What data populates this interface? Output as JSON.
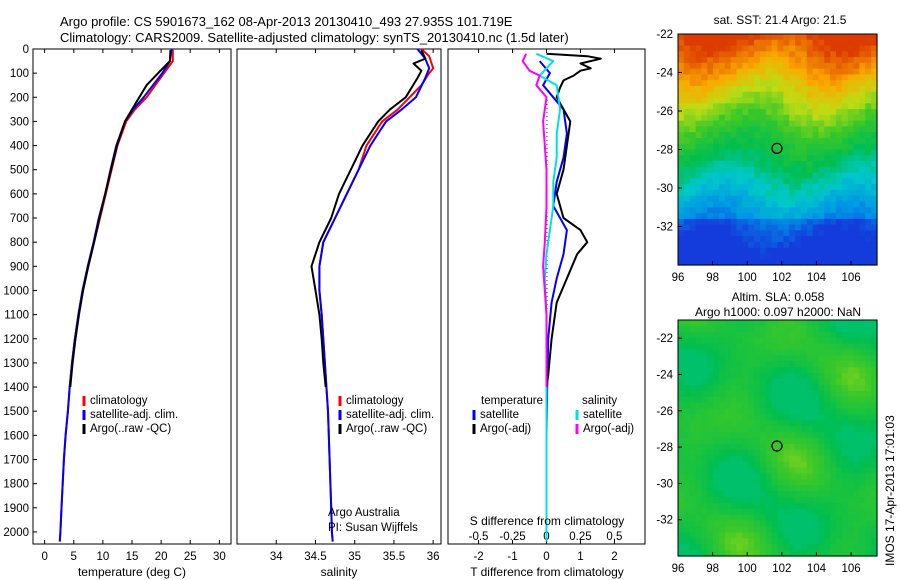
{
  "title_line1": "Argo profile: CS 5901673_162 08-Apr-2013 20130410_493 27.935S 101.719E",
  "title_line2": "Climatology: CARS2009. Satellite-adjusted climatology: synTS_20130410.nc (1.5d later)",
  "side_stamp": "IMOS 17-Apr-2013 17:01:03",
  "chart_data": [
    {
      "type": "line",
      "xlabel": "temperature (deg C)",
      "xlim": [
        -2,
        32
      ],
      "ylim": [
        2050,
        0
      ],
      "xticks": [
        0,
        5,
        10,
        15,
        20,
        25,
        30
      ],
      "yticks": [
        0,
        100,
        200,
        300,
        400,
        500,
        600,
        700,
        800,
        900,
        1000,
        1100,
        1200,
        1300,
        1400,
        1500,
        1600,
        1700,
        1800,
        1900,
        2000
      ],
      "legend": [
        "climatology",
        "satellite-adj. clim.",
        "Argo(..raw -QC)"
      ],
      "series": [
        {
          "name": "climatology",
          "color": "#ff0000",
          "points": [
            [
              22.0,
              0
            ],
            [
              22.0,
              50
            ],
            [
              20.5,
              100
            ],
            [
              17.5,
              200
            ],
            [
              15.5,
              250
            ],
            [
              14.0,
              300
            ],
            [
              12.5,
              400
            ],
            [
              11.5,
              500
            ],
            [
              10.5,
              600
            ],
            [
              9.5,
              700
            ],
            [
              8.5,
              800
            ],
            [
              7.5,
              900
            ],
            [
              6.5,
              1000
            ],
            [
              5.8,
              1100
            ],
            [
              5.2,
              1200
            ],
            [
              4.7,
              1300
            ],
            [
              4.3,
              1400
            ],
            [
              4.0,
              1500
            ],
            [
              3.6,
              1600
            ],
            [
              3.3,
              1700
            ],
            [
              3.1,
              1800
            ],
            [
              2.9,
              1900
            ],
            [
              2.7,
              2000
            ],
            [
              2.6,
              2040
            ]
          ]
        },
        {
          "name": "satellite-adj. clim.",
          "color": "#0000ff",
          "points": [
            [
              21.8,
              0
            ],
            [
              21.5,
              50
            ],
            [
              20.2,
              100
            ],
            [
              17.0,
              200
            ],
            [
              15.2,
              250
            ],
            [
              13.8,
              300
            ],
            [
              12.3,
              400
            ],
            [
              11.3,
              500
            ],
            [
              10.4,
              600
            ],
            [
              9.3,
              700
            ],
            [
              8.4,
              800
            ],
            [
              7.4,
              900
            ],
            [
              6.5,
              1000
            ],
            [
              5.8,
              1100
            ],
            [
              5.2,
              1200
            ],
            [
              4.7,
              1300
            ],
            [
              4.3,
              1400
            ],
            [
              4.0,
              1500
            ],
            [
              3.6,
              1600
            ],
            [
              3.3,
              1700
            ],
            [
              3.1,
              1800
            ],
            [
              2.9,
              1900
            ],
            [
              2.7,
              2000
            ],
            [
              2.6,
              2040
            ]
          ]
        },
        {
          "name": "Argo(..raw -QC)",
          "color": "#000000",
          "points": [
            [
              21.6,
              5
            ],
            [
              21.5,
              50
            ],
            [
              19.5,
              100
            ],
            [
              17.5,
              150
            ],
            [
              15.0,
              250
            ],
            [
              13.8,
              300
            ],
            [
              12.4,
              400
            ],
            [
              11.4,
              500
            ],
            [
              10.4,
              600
            ],
            [
              9.4,
              700
            ],
            [
              8.5,
              800
            ],
            [
              7.5,
              900
            ],
            [
              6.6,
              1000
            ],
            [
              5.9,
              1100
            ],
            [
              5.3,
              1200
            ],
            [
              4.8,
              1300
            ],
            [
              4.4,
              1400
            ]
          ]
        }
      ]
    },
    {
      "type": "line",
      "xlabel": "salinity",
      "xlim": [
        33.5,
        36.1
      ],
      "ylim": [
        2050,
        0
      ],
      "xticks": [
        34,
        34.5,
        35,
        35.5,
        36
      ],
      "legend": [
        "climatology",
        "satellite-adj. clim.",
        "Argo(..raw -QC)"
      ],
      "annotation": [
        "Argo Australia",
        "PI: Susan Wijffels"
      ],
      "series": [
        {
          "name": "climatology",
          "color": "#ff0000",
          "points": [
            [
              35.85,
              0
            ],
            [
              35.95,
              30
            ],
            [
              36.0,
              80
            ],
            [
              35.95,
              100
            ],
            [
              35.85,
              150
            ],
            [
              35.7,
              200
            ],
            [
              35.55,
              250
            ],
            [
              35.35,
              300
            ],
            [
              35.15,
              400
            ],
            [
              35.05,
              500
            ],
            [
              34.9,
              600
            ],
            [
              34.75,
              700
            ],
            [
              34.6,
              800
            ],
            [
              34.55,
              900
            ],
            [
              34.55,
              1000
            ],
            [
              34.58,
              1100
            ],
            [
              34.6,
              1200
            ],
            [
              34.62,
              1300
            ],
            [
              34.64,
              1400
            ],
            [
              34.66,
              1500
            ],
            [
              34.67,
              1600
            ],
            [
              34.68,
              1700
            ],
            [
              34.69,
              1800
            ],
            [
              34.7,
              1900
            ],
            [
              34.71,
              2000
            ],
            [
              34.72,
              2040
            ]
          ]
        },
        {
          "name": "satellite-adj. clim.",
          "color": "#0000ff",
          "points": [
            [
              35.8,
              0
            ],
            [
              35.9,
              40
            ],
            [
              35.95,
              80
            ],
            [
              35.9,
              120
            ],
            [
              35.78,
              200
            ],
            [
              35.6,
              250
            ],
            [
              35.4,
              300
            ],
            [
              35.2,
              400
            ],
            [
              35.05,
              500
            ],
            [
              34.9,
              600
            ],
            [
              34.75,
              700
            ],
            [
              34.6,
              800
            ],
            [
              34.55,
              900
            ],
            [
              34.55,
              1000
            ],
            [
              34.58,
              1100
            ],
            [
              34.6,
              1200
            ],
            [
              34.62,
              1300
            ],
            [
              34.64,
              1400
            ],
            [
              34.66,
              1500
            ],
            [
              34.67,
              1600
            ],
            [
              34.68,
              1700
            ],
            [
              34.69,
              1800
            ],
            [
              34.7,
              1900
            ],
            [
              34.71,
              2000
            ],
            [
              34.72,
              2040
            ]
          ]
        },
        {
          "name": "Argo(..raw -QC)",
          "color": "#000000",
          "points": [
            [
              35.85,
              5
            ],
            [
              35.9,
              40
            ],
            [
              35.75,
              60
            ],
            [
              35.85,
              90
            ],
            [
              35.8,
              120
            ],
            [
              35.65,
              200
            ],
            [
              35.45,
              250
            ],
            [
              35.3,
              300
            ],
            [
              35.1,
              400
            ],
            [
              34.95,
              500
            ],
            [
              34.8,
              600
            ],
            [
              34.7,
              700
            ],
            [
              34.55,
              800
            ],
            [
              34.45,
              900
            ],
            [
              34.5,
              1000
            ],
            [
              34.55,
              1100
            ],
            [
              34.58,
              1200
            ],
            [
              34.6,
              1300
            ],
            [
              34.63,
              1400
            ]
          ]
        }
      ]
    },
    {
      "type": "line",
      "xlabel": "T difference from climatology",
      "xlabel_top": "S difference from climatology",
      "xlim": [
        -2.9,
        2.9
      ],
      "ylim": [
        2050,
        0
      ],
      "xticks": [
        -2,
        -1,
        0,
        1,
        2
      ],
      "xticks_top": [
        "-0.5",
        "-0.25",
        "0",
        "0.25",
        "0.5"
      ],
      "legend_temperature": {
        "heading": "temperature",
        "items": [
          "satellite",
          "Argo(-adj)"
        ]
      },
      "legend_salinity": {
        "heading": "salinity",
        "items": [
          "satellite",
          "Argo(-adj)"
        ]
      },
      "series": [
        {
          "name": "satellite",
          "group": "temperature",
          "color": "#0000ff",
          "points": [
            [
              -0.2,
              50
            ],
            [
              0.1,
              100
            ],
            [
              -0.1,
              150
            ],
            [
              0.2,
              200
            ],
            [
              0.5,
              250
            ],
            [
              0.6,
              350
            ],
            [
              0.5,
              450
            ],
            [
              0.3,
              550
            ],
            [
              0.2,
              650
            ],
            [
              0.4,
              700
            ],
            [
              0.6,
              750
            ],
            [
              0.5,
              850
            ],
            [
              0.3,
              950
            ],
            [
              0.15,
              1050
            ],
            [
              0.05,
              1200
            ],
            [
              0.02,
              1400
            ],
            [
              0.0,
              1600
            ],
            [
              0.0,
              1800
            ],
            [
              0.0,
              2040
            ]
          ]
        },
        {
          "name": "Argo(-adj)",
          "group": "temperature",
          "color": "#000000",
          "points": [
            [
              0.0,
              20
            ],
            [
              1.2,
              30
            ],
            [
              1.6,
              40
            ],
            [
              1.0,
              60
            ],
            [
              1.3,
              80
            ],
            [
              1.0,
              90
            ],
            [
              0.8,
              110
            ],
            [
              0.5,
              130
            ],
            [
              0.4,
              160
            ],
            [
              0.3,
              200
            ],
            [
              0.7,
              300
            ],
            [
              0.6,
              400
            ],
            [
              0.5,
              500
            ],
            [
              0.3,
              600
            ],
            [
              0.5,
              700
            ],
            [
              1.0,
              750
            ],
            [
              1.2,
              800
            ],
            [
              0.9,
              850
            ],
            [
              0.6,
              950
            ],
            [
              0.3,
              1050
            ],
            [
              0.15,
              1200
            ],
            [
              0.05,
              1350
            ],
            [
              0.0,
              1400
            ]
          ]
        },
        {
          "name": "satellite",
          "group": "salinity",
          "color": "#00e0e0",
          "points": [
            [
              -0.3,
              20
            ],
            [
              0.2,
              50
            ],
            [
              0.0,
              80
            ],
            [
              -0.2,
              110
            ],
            [
              0.3,
              150
            ],
            [
              0.4,
              250
            ],
            [
              0.3,
              350
            ],
            [
              0.3,
              450
            ],
            [
              0.2,
              550
            ],
            [
              0.2,
              650
            ],
            [
              0.1,
              750
            ],
            [
              0.0,
              850
            ],
            [
              -0.05,
              950
            ],
            [
              0.0,
              1100
            ],
            [
              0.0,
              1300
            ],
            [
              0.0,
              1600
            ],
            [
              0.0,
              1900
            ],
            [
              0.0,
              2040
            ]
          ]
        },
        {
          "name": "Argo(-adj)",
          "group": "salinity",
          "color": "#ff00ff",
          "points": [
            [
              -0.6,
              20
            ],
            [
              -0.7,
              50
            ],
            [
              -0.5,
              90
            ],
            [
              -0.2,
              110
            ],
            [
              -0.3,
              150
            ],
            [
              0.0,
              200
            ],
            [
              -0.1,
              300
            ],
            [
              -0.05,
              400
            ],
            [
              0.0,
              500
            ],
            [
              0.0,
              650
            ],
            [
              -0.05,
              800
            ],
            [
              -0.1,
              900
            ],
            [
              -0.05,
              1000
            ],
            [
              0.0,
              1100
            ],
            [
              0.0,
              1200
            ],
            [
              0.0,
              1400
            ]
          ]
        }
      ]
    },
    {
      "type": "heatmap",
      "title": "sat. SST: 21.4  Argo: 21.5",
      "xlim": [
        96,
        107.5
      ],
      "ylim": [
        -34,
        -22
      ],
      "xticks": [
        96,
        98,
        100,
        102,
        104,
        106
      ],
      "yticks": [
        -22,
        -24,
        -26,
        -28,
        -30,
        -32
      ],
      "marker": {
        "lon": 101.72,
        "lat": -27.94
      }
    },
    {
      "type": "heatmap",
      "title_line1": "Altim. SLA: 0.058",
      "title_line2": "Argo h1000: 0.097  h2000: NaN",
      "xlim": [
        96,
        107.5
      ],
      "ylim": [
        -34,
        -21
      ],
      "xticks": [
        96,
        98,
        100,
        102,
        104,
        106
      ],
      "yticks": [
        -22,
        -24,
        -26,
        -28,
        -30,
        -32
      ],
      "marker": {
        "lon": 101.72,
        "lat": -27.94
      }
    }
  ]
}
